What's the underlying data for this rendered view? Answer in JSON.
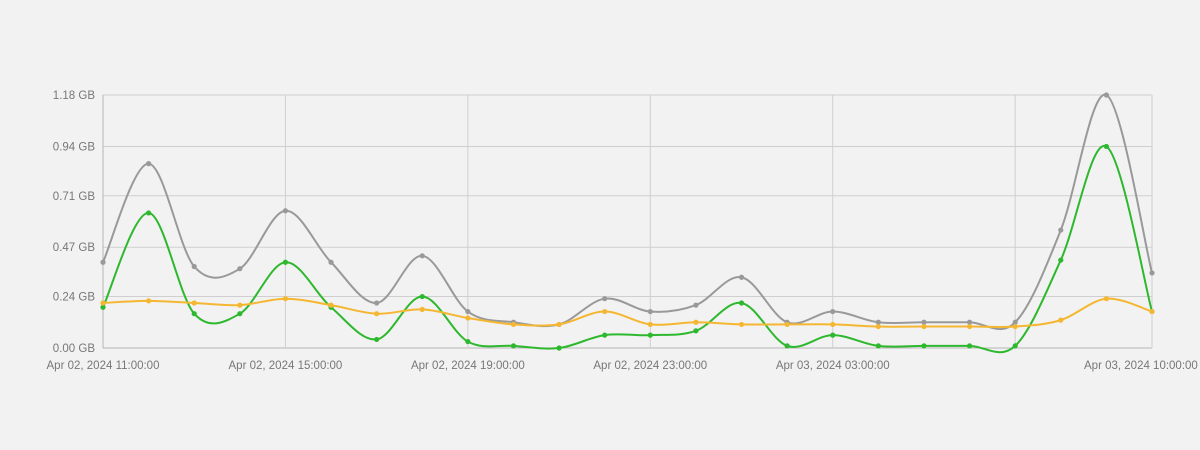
{
  "chart_data": {
    "type": "line",
    "title": "",
    "xlabel": "",
    "ylabel": "",
    "grid": true,
    "legend": "none",
    "y_unit": "GB",
    "ylim": [
      0,
      1.18
    ],
    "y_ticks": [
      0.0,
      0.24,
      0.47,
      0.71,
      0.94,
      1.18
    ],
    "y_tick_labels": [
      "0.00 GB",
      "0.24 GB",
      "0.47 GB",
      "0.71 GB",
      "0.94 GB",
      "1.18 GB"
    ],
    "x_range": [
      "Apr 02, 2024 11:00:00",
      "Apr 03, 2024 10:00:00"
    ],
    "x_ticks": [
      "Apr 02, 2024 11:00:00",
      "Apr 02, 2024 15:00:00",
      "Apr 02, 2024 19:00:00",
      "Apr 02, 2024 23:00:00",
      "Apr 03, 2024 03:00:00",
      "Apr 03, 2024 07:00:00",
      "Apr 03, 2024 10:00:00"
    ],
    "x_tick_labels": [
      "Apr 02, 2024 11:00:00",
      "Apr 02, 2024 15:00:00",
      "Apr 02, 2024 19:00:00",
      "Apr 02, 2024 23:00:00",
      "Apr 03, 2024 03:00:00",
      "",
      "Apr 03, 2024 10:00:00"
    ],
    "x": [
      "Apr 02, 2024 11:00:00",
      "Apr 02, 2024 12:00:00",
      "Apr 02, 2024 13:00:00",
      "Apr 02, 2024 14:00:00",
      "Apr 02, 2024 15:00:00",
      "Apr 02, 2024 16:00:00",
      "Apr 02, 2024 17:00:00",
      "Apr 02, 2024 18:00:00",
      "Apr 02, 2024 19:00:00",
      "Apr 02, 2024 20:00:00",
      "Apr 02, 2024 21:00:00",
      "Apr 02, 2024 22:00:00",
      "Apr 02, 2024 23:00:00",
      "Apr 03, 2024 00:00:00",
      "Apr 03, 2024 01:00:00",
      "Apr 03, 2024 02:00:00",
      "Apr 03, 2024 03:00:00",
      "Apr 03, 2024 04:00:00",
      "Apr 03, 2024 05:00:00",
      "Apr 03, 2024 06:00:00",
      "Apr 03, 2024 07:00:00",
      "Apr 03, 2024 08:00:00",
      "Apr 03, 2024 09:00:00",
      "Apr 03, 2024 10:00:00"
    ],
    "series": [
      {
        "color": "#999999",
        "values": [
          0.4,
          0.86,
          0.38,
          0.37,
          0.64,
          0.4,
          0.21,
          0.43,
          0.17,
          0.12,
          0.11,
          0.23,
          0.17,
          0.2,
          0.33,
          0.12,
          0.17,
          0.12,
          0.12,
          0.12,
          0.12,
          0.55,
          1.18,
          0.35
        ]
      },
      {
        "color": "#2eb82e",
        "values": [
          0.19,
          0.63,
          0.16,
          0.16,
          0.4,
          0.19,
          0.04,
          0.24,
          0.03,
          0.01,
          0.0,
          0.06,
          0.06,
          0.08,
          0.21,
          0.01,
          0.06,
          0.01,
          0.01,
          0.01,
          0.01,
          0.41,
          0.94,
          0.17
        ]
      },
      {
        "color": "#f5b731",
        "values": [
          0.21,
          0.22,
          0.21,
          0.2,
          0.23,
          0.2,
          0.16,
          0.18,
          0.14,
          0.11,
          0.11,
          0.17,
          0.11,
          0.12,
          0.11,
          0.11,
          0.11,
          0.1,
          0.1,
          0.1,
          0.1,
          0.13,
          0.23,
          0.17
        ]
      }
    ]
  }
}
